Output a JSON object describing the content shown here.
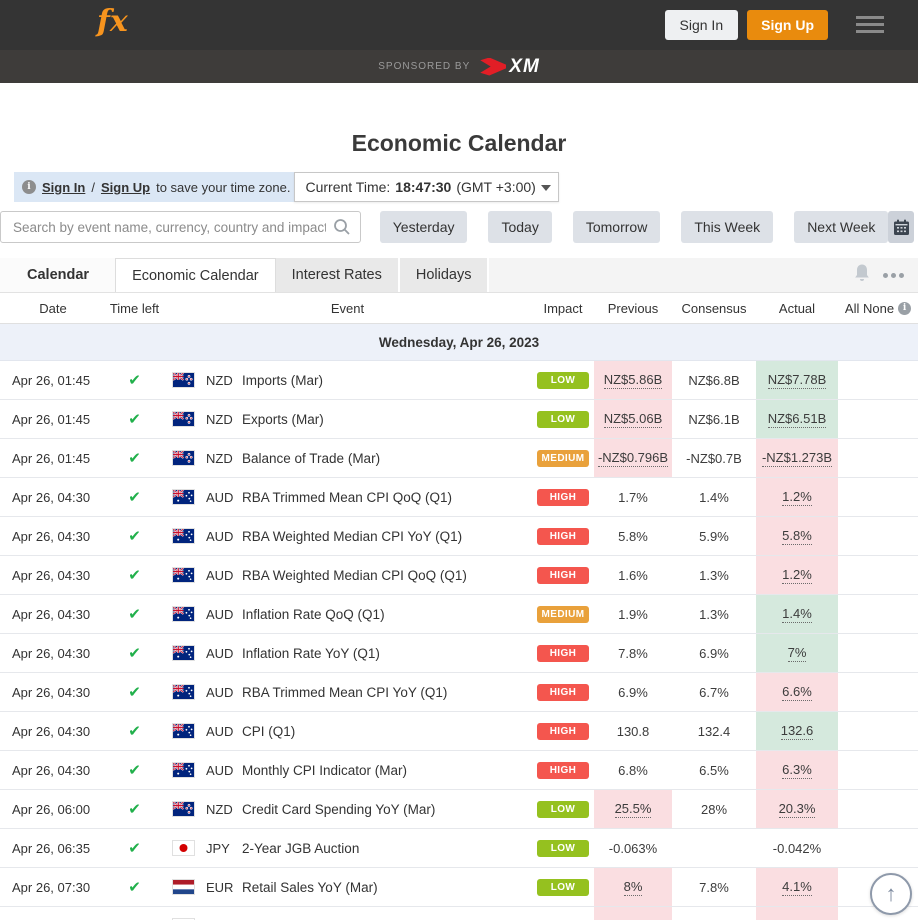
{
  "topbar": {
    "logo_text": "fx",
    "sign_in": "Sign In",
    "sign_up": "Sign Up"
  },
  "sponsor": {
    "label": "SPONSORED BY",
    "brand": "XM"
  },
  "page": {
    "title": "Economic Calendar"
  },
  "timezone": {
    "sign_in": "Sign In",
    "sep": "/",
    "sign_up": "Sign Up",
    "note": "to save your time zone.",
    "current_label": "Current Time:",
    "time": "18:47:30",
    "gmt": "(GMT +3:00)"
  },
  "toolbar": {
    "search_placeholder": "Search by event name, currency, country and impact",
    "buttons": [
      "Yesterday",
      "Today",
      "Tomorrow",
      "This Week",
      "Next Week"
    ]
  },
  "tabs": {
    "section_label": "Calendar",
    "items": [
      "Economic Calendar",
      "Interest Rates",
      "Holidays"
    ],
    "active": "Economic Calendar"
  },
  "table": {
    "columns": {
      "date": "Date",
      "time_left": "Time left",
      "event": "Event",
      "impact": "Impact",
      "previous": "Previous",
      "consensus": "Consensus",
      "actual": "Actual",
      "all_none": "All None"
    },
    "group_header": "Wednesday, Apr 26, 2023",
    "rows": [
      {
        "date": "Apr 26, 01:45",
        "checked": true,
        "country": "new-zealand",
        "currency": "NZD",
        "event": "Imports (Mar)",
        "impact": "LOW",
        "previous": {
          "value": "NZ$5.86B",
          "highlight": "neg",
          "underline": true
        },
        "consensus": {
          "value": "NZ$6.8B"
        },
        "actual": {
          "value": "NZ$7.78B",
          "highlight": "pos",
          "underline": true
        }
      },
      {
        "date": "Apr 26, 01:45",
        "checked": true,
        "country": "new-zealand",
        "currency": "NZD",
        "event": "Exports (Mar)",
        "impact": "LOW",
        "previous": {
          "value": "NZ$5.06B",
          "highlight": "neg",
          "underline": true
        },
        "consensus": {
          "value": "NZ$6.1B"
        },
        "actual": {
          "value": "NZ$6.51B",
          "highlight": "pos",
          "underline": true
        }
      },
      {
        "date": "Apr 26, 01:45",
        "checked": true,
        "country": "new-zealand",
        "currency": "NZD",
        "event": "Balance of Trade (Mar)",
        "impact": "MEDIUM",
        "previous": {
          "value": "-NZ$0.796B",
          "highlight": "neg",
          "underline": true
        },
        "consensus": {
          "value": "-NZ$0.7B"
        },
        "actual": {
          "value": "-NZ$1.273B",
          "highlight": "neg",
          "underline": true
        }
      },
      {
        "date": "Apr 26, 04:30",
        "checked": true,
        "country": "australia",
        "currency": "AUD",
        "event": "RBA Trimmed Mean CPI QoQ (Q1)",
        "impact": "HIGH",
        "previous": {
          "value": "1.7%"
        },
        "consensus": {
          "value": "1.4%"
        },
        "actual": {
          "value": "1.2%",
          "highlight": "neg",
          "underline": true
        }
      },
      {
        "date": "Apr 26, 04:30",
        "checked": true,
        "country": "australia",
        "currency": "AUD",
        "event": "RBA Weighted Median CPI YoY (Q1)",
        "impact": "HIGH",
        "previous": {
          "value": "5.8%"
        },
        "consensus": {
          "value": "5.9%"
        },
        "actual": {
          "value": "5.8%",
          "highlight": "neg",
          "underline": true
        }
      },
      {
        "date": "Apr 26, 04:30",
        "checked": true,
        "country": "australia",
        "currency": "AUD",
        "event": "RBA Weighted Median CPI QoQ (Q1)",
        "impact": "HIGH",
        "previous": {
          "value": "1.6%"
        },
        "consensus": {
          "value": "1.3%"
        },
        "actual": {
          "value": "1.2%",
          "highlight": "neg",
          "underline": true
        }
      },
      {
        "date": "Apr 26, 04:30",
        "checked": true,
        "country": "australia",
        "currency": "AUD",
        "event": "Inflation Rate QoQ (Q1)",
        "impact": "MEDIUM",
        "previous": {
          "value": "1.9%"
        },
        "consensus": {
          "value": "1.3%"
        },
        "actual": {
          "value": "1.4%",
          "highlight": "pos",
          "underline": true
        }
      },
      {
        "date": "Apr 26, 04:30",
        "checked": true,
        "country": "australia",
        "currency": "AUD",
        "event": "Inflation Rate YoY (Q1)",
        "impact": "HIGH",
        "previous": {
          "value": "7.8%"
        },
        "consensus": {
          "value": "6.9%"
        },
        "actual": {
          "value": "7%",
          "highlight": "pos",
          "underline": true
        }
      },
      {
        "date": "Apr 26, 04:30",
        "checked": true,
        "country": "australia",
        "currency": "AUD",
        "event": "RBA Trimmed Mean CPI YoY (Q1)",
        "impact": "HIGH",
        "previous": {
          "value": "6.9%"
        },
        "consensus": {
          "value": "6.7%"
        },
        "actual": {
          "value": "6.6%",
          "highlight": "neg",
          "underline": true
        }
      },
      {
        "date": "Apr 26, 04:30",
        "checked": true,
        "country": "australia",
        "currency": "AUD",
        "event": "CPI (Q1)",
        "impact": "HIGH",
        "previous": {
          "value": "130.8"
        },
        "consensus": {
          "value": "132.4"
        },
        "actual": {
          "value": "132.6",
          "highlight": "pos",
          "underline": true
        }
      },
      {
        "date": "Apr 26, 04:30",
        "checked": true,
        "country": "australia",
        "currency": "AUD",
        "event": "Monthly CPI Indicator (Mar)",
        "impact": "HIGH",
        "previous": {
          "value": "6.8%"
        },
        "consensus": {
          "value": "6.5%"
        },
        "actual": {
          "value": "6.3%",
          "highlight": "neg",
          "underline": true
        }
      },
      {
        "date": "Apr 26, 06:00",
        "checked": true,
        "country": "new-zealand",
        "currency": "NZD",
        "event": "Credit Card Spending YoY (Mar)",
        "impact": "LOW",
        "previous": {
          "value": "25.5%",
          "highlight": "neg",
          "underline": true
        },
        "consensus": {
          "value": "28%"
        },
        "actual": {
          "value": "20.3%",
          "highlight": "neg",
          "underline": true
        }
      },
      {
        "date": "Apr 26, 06:35",
        "checked": true,
        "country": "japan",
        "currency": "JPY",
        "event": "2-Year JGB Auction",
        "impact": "LOW",
        "previous": {
          "value": "-0.063%"
        },
        "consensus": {
          "value": ""
        },
        "actual": {
          "value": "-0.042%"
        }
      },
      {
        "date": "Apr 26, 07:30",
        "checked": true,
        "country": "netherlands",
        "currency": "EUR",
        "event": "Retail Sales YoY (Mar)",
        "impact": "LOW",
        "previous": {
          "value": "8%",
          "highlight": "neg",
          "underline": true
        },
        "consensus": {
          "value": "7.8%"
        },
        "actual": {
          "value": "4.1%",
          "highlight": "neg",
          "underline": true
        }
      }
    ],
    "partial_row": {
      "previous_highlight": "neg",
      "actual_highlight": "neg"
    }
  },
  "fab": {
    "arrow": "↑"
  },
  "colors": {
    "accent_orange": "#e98b0d",
    "impact_low": "#95c11f",
    "impact_medium": "#e9a13b",
    "impact_high": "#f4564e",
    "cell_negative": "#fadee1",
    "cell_positive": "#d5e9dd",
    "check_green": "#21b04b"
  }
}
